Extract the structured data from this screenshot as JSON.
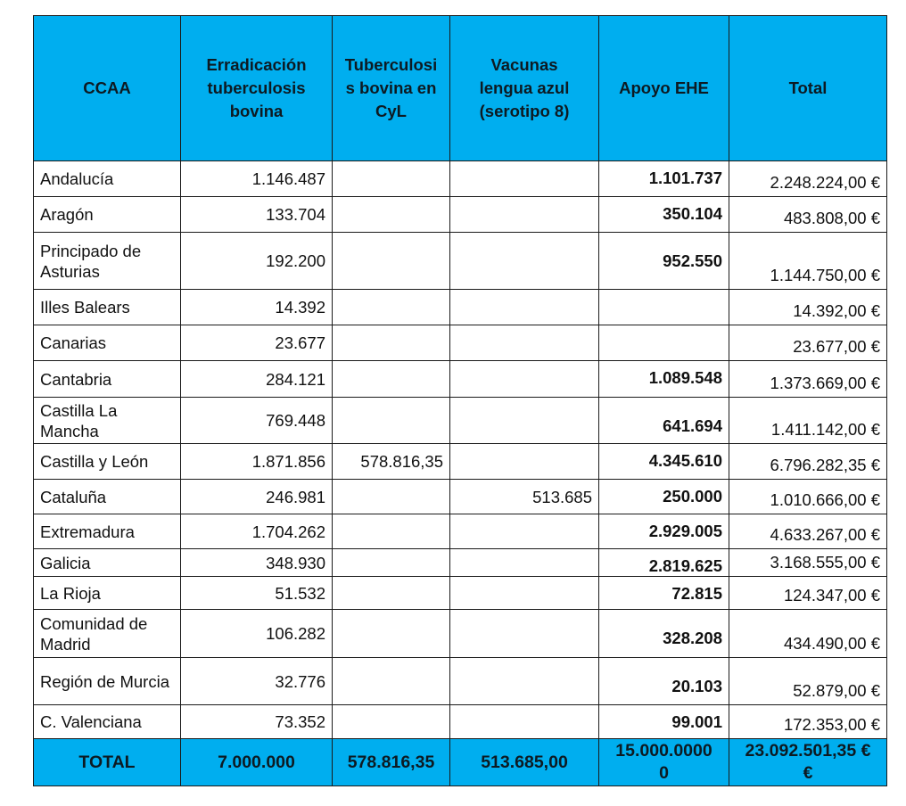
{
  "accent_color": "#00aeef",
  "headers": [
    "CCAA",
    "Erradicación\ntuberculosis\nbovina",
    "Tuberculosi\ns bovina en\nCyL",
    "Vacunas\nlengua azul\n(serotipo 8)",
    "Apoyo EHE",
    "Total"
  ],
  "rows": [
    {
      "ccaa": "Andalucía",
      "erradicacion": "1.146.487",
      "tb_cyl": "",
      "vacunas": "",
      "ehe": "1.101.737",
      "total": "2.248.224,00 €"
    },
    {
      "ccaa": "Aragón",
      "erradicacion": "133.704",
      "tb_cyl": "",
      "vacunas": "",
      "ehe": "350.104",
      "total": "483.808,00 €"
    },
    {
      "ccaa": "Principado de Asturias",
      "erradicacion": "192.200",
      "tb_cyl": "",
      "vacunas": "",
      "ehe": "952.550",
      "total": "1.144.750,00 €"
    },
    {
      "ccaa": "Illes Balears",
      "erradicacion": "14.392",
      "tb_cyl": "",
      "vacunas": "",
      "ehe": "",
      "total": "14.392,00 €"
    },
    {
      "ccaa": "Canarias",
      "erradicacion": "23.677",
      "tb_cyl": "",
      "vacunas": "",
      "ehe": "",
      "total": "23.677,00 €"
    },
    {
      "ccaa": "Cantabria",
      "erradicacion": "284.121",
      "tb_cyl": "",
      "vacunas": "",
      "ehe": "1.089.548",
      "total": "1.373.669,00 €"
    },
    {
      "ccaa": "Castilla La Mancha",
      "erradicacion": "769.448",
      "tb_cyl": "",
      "vacunas": "",
      "ehe": "641.694",
      "total": "1.411.142,00 €"
    },
    {
      "ccaa": "Castilla y León",
      "erradicacion": "1.871.856",
      "tb_cyl": "578.816,35",
      "vacunas": "",
      "ehe": "4.345.610",
      "total": "6.796.282,35 €"
    },
    {
      "ccaa": "Cataluña",
      "erradicacion": "246.981",
      "tb_cyl": "",
      "vacunas": "513.685",
      "ehe": "250.000",
      "total": "1.010.666,00 €"
    },
    {
      "ccaa": "Extremadura",
      "erradicacion": "1.704.262",
      "tb_cyl": "",
      "vacunas": "",
      "ehe": "2.929.005",
      "total": "4.633.267,00 €"
    },
    {
      "ccaa": "Galicia",
      "erradicacion": "348.930",
      "tb_cyl": "",
      "vacunas": "",
      "ehe": "2.819.625",
      "total": "3.168.555,00 €"
    },
    {
      "ccaa": "La Rioja",
      "erradicacion": "51.532",
      "tb_cyl": "",
      "vacunas": "",
      "ehe": "72.815",
      "total": "124.347,00 €"
    },
    {
      "ccaa": "Comunidad de Madrid",
      "erradicacion": "106.282",
      "tb_cyl": "",
      "vacunas": "",
      "ehe": "328.208",
      "total": "434.490,00 €"
    },
    {
      "ccaa": "Región de Murcia",
      "erradicacion": "32.776",
      "tb_cyl": "",
      "vacunas": "",
      "ehe": "20.103",
      "total": "52.879,00 €"
    },
    {
      "ccaa": "C. Valenciana",
      "erradicacion": "73.352",
      "tb_cyl": "",
      "vacunas": "",
      "ehe": "99.001",
      "total": "172.353,00 €"
    }
  ],
  "totals": {
    "label": "TOTAL",
    "erradicacion": "7.000.000",
    "tb_cyl": "578.816,35",
    "vacunas": "513.685,00",
    "ehe": "15.000.0000\n0",
    "total": "23.092.501,35 €\n€"
  }
}
